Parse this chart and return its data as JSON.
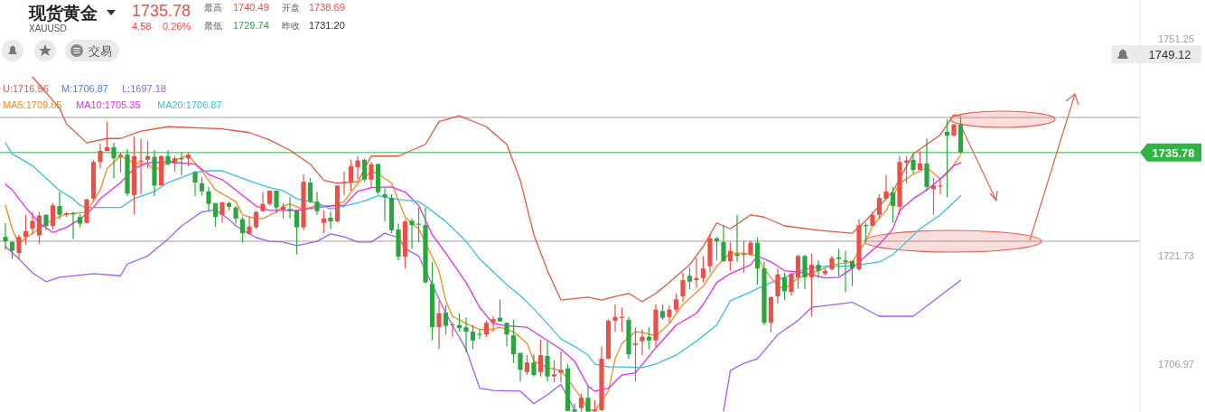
{
  "chart_data": {
    "type": "candlestick",
    "title": "现货黄金",
    "subtitle": "XAUUSD",
    "categories": [
      null,
      null,
      null,
      null,
      null,
      null,
      null,
      null,
      null,
      null,
      null,
      null,
      null,
      null,
      null,
      null,
      null,
      null,
      null,
      null,
      null,
      null,
      null,
      null,
      null,
      null,
      null,
      null,
      null,
      null,
      null,
      null,
      null,
      null,
      null,
      null,
      null,
      null,
      null,
      null,
      null,
      null,
      null,
      null,
      null,
      null,
      null,
      null,
      null,
      null,
      null,
      null,
      null,
      null,
      null,
      null,
      null,
      null,
      null,
      null,
      null,
      null,
      null,
      null,
      null,
      null,
      null,
      null,
      null,
      null,
      null,
      null,
      null,
      null,
      null,
      null,
      null,
      null,
      null,
      null,
      null,
      null,
      null,
      null,
      null,
      null,
      null,
      null,
      null,
      null,
      null,
      null,
      null,
      null,
      null,
      null,
      null,
      null,
      null,
      null,
      null,
      null,
      null,
      null,
      null,
      null,
      null,
      null,
      null,
      null,
      null,
      null,
      null,
      null,
      null,
      null,
      null,
      null,
      null,
      null,
      null,
      null,
      null,
      null,
      null,
      null,
      null,
      null,
      null,
      null,
      null,
      null,
      null,
      null,
      null,
      null,
      null,
      null,
      null,
      null,
      null,
      null
    ],
    "ohlc": [
      [
        1724.3,
        1726.2,
        1722.5,
        1723.7
      ],
      [
        1723.6,
        1723.7,
        1721.3,
        1722.4
      ],
      [
        1722.1,
        1724.6,
        1721.3,
        1724.3
      ],
      [
        1724.3,
        1727.3,
        1723.3,
        1725.1
      ],
      [
        1725.4,
        1727.7,
        1724.6,
        1726.5
      ],
      [
        1724.5,
        1727.7,
        1723.3,
        1727.2
      ],
      [
        1727.3,
        1727.4,
        1725.2,
        1725.8
      ],
      [
        1725.8,
        1728.9,
        1725.4,
        1728.6
      ],
      [
        1728.5,
        1730.4,
        1726.7,
        1727.3
      ],
      [
        1727.3,
        1727.7,
        1727.0,
        1727.5
      ],
      [
        1727.5,
        1727.7,
        1724.0,
        1727.4
      ],
      [
        1727.0,
        1727.4,
        1725.6,
        1726.1
      ],
      [
        1726.2,
        1729.5,
        1726.1,
        1729.4
      ],
      [
        1729.5,
        1734.8,
        1729.2,
        1734.5
      ],
      [
        1734.5,
        1737.0,
        1733.6,
        1736.0
      ],
      [
        1736.0,
        1740.0,
        1736.0,
        1736.5
      ],
      [
        1736.5,
        1737.1,
        1732.3,
        1735.0
      ],
      [
        1735.2,
        1735.8,
        1733.1,
        1735.5
      ],
      [
        1735.5,
        1736.3,
        1729.9,
        1730.2
      ],
      [
        1730.0,
        1738.0,
        1727.4,
        1735.3
      ],
      [
        1734.6,
        1737.7,
        1730.1,
        1734.7
      ],
      [
        1734.8,
        1737.4,
        1733.6,
        1735.3
      ],
      [
        1735.2,
        1736.1,
        1729.9,
        1731.3
      ],
      [
        1731.3,
        1735.4,
        1731.3,
        1735.3
      ],
      [
        1735.3,
        1736.1,
        1734.0,
        1734.2
      ],
      [
        1734.3,
        1735.3,
        1733.2,
        1735.0
      ],
      [
        1735.0,
        1735.8,
        1732.7,
        1734.9
      ],
      [
        1735.0,
        1735.8,
        1733.9,
        1735.5
      ],
      [
        1733.1,
        1733.3,
        1729.9,
        1731.7
      ],
      [
        1731.6,
        1732.4,
        1729.9,
        1730.5
      ],
      [
        1730.5,
        1731.1,
        1727.7,
        1728.8
      ],
      [
        1728.9,
        1728.9,
        1725.7,
        1727.0
      ],
      [
        1727.3,
        1729.1,
        1726.2,
        1729.0
      ],
      [
        1728.9,
        1729.1,
        1727.9,
        1728.4
      ],
      [
        1728.3,
        1728.5,
        1726.1,
        1726.8
      ],
      [
        1726.7,
        1727.0,
        1723.5,
        1724.8
      ],
      [
        1724.7,
        1727.0,
        1724.6,
        1725.7
      ],
      [
        1725.6,
        1727.9,
        1725.4,
        1727.7
      ],
      [
        1727.8,
        1730.4,
        1727.7,
        1728.8
      ],
      [
        1728.8,
        1730.6,
        1728.6,
        1730.6
      ],
      [
        1730.6,
        1730.6,
        1727.5,
        1728.3
      ],
      [
        1728.0,
        1728.9,
        1726.8,
        1728.4
      ],
      [
        1728.1,
        1729.7,
        1726.8,
        1727.8
      ],
      [
        1727.9,
        1727.9,
        1721.9,
        1725.6
      ],
      [
        1725.6,
        1732.8,
        1725.2,
        1731.8
      ],
      [
        1731.7,
        1732.3,
        1728.9,
        1729.1
      ],
      [
        1729.1,
        1730.4,
        1727.3,
        1727.8
      ],
      [
        1726.2,
        1727.9,
        1724.8,
        1726.8
      ],
      [
        1726.9,
        1727.7,
        1725.4,
        1726.4
      ],
      [
        1726.4,
        1731.3,
        1726.3,
        1731.3
      ],
      [
        1731.6,
        1733.2,
        1730.0,
        1731.8
      ],
      [
        1731.7,
        1734.8,
        1730.6,
        1733.9
      ],
      [
        1733.8,
        1735.3,
        1732.2,
        1734.7
      ],
      [
        1734.8,
        1735.0,
        1731.8,
        1732.1
      ],
      [
        1732.1,
        1734.5,
        1731.1,
        1734.2
      ],
      [
        1734.2,
        1734.3,
        1730.1,
        1730.4
      ],
      [
        1730.1,
        1731.0,
        1726.4,
        1729.7
      ],
      [
        1729.6,
        1730.1,
        1724.8,
        1725.2
      ],
      [
        1725.3,
        1726.1,
        1721.1,
        1721.6
      ],
      [
        1721.6,
        1726.7,
        1720.0,
        1726.4
      ],
      [
        1726.5,
        1726.8,
        1722.7,
        1725.9
      ],
      [
        1726.1,
        1728.3,
        1723.6,
        1726.0
      ],
      [
        1725.9,
        1728.3,
        1718.0,
        1718.1
      ],
      [
        1717.9,
        1720.9,
        1710.2,
        1712.0
      ],
      [
        1712.0,
        1715.6,
        1709.0,
        1713.9
      ],
      [
        1714.0,
        1715.0,
        1711.0,
        1712.2
      ],
      [
        1712.3,
        1712.6,
        1710.7,
        1712.4
      ],
      [
        1712.3,
        1713.9,
        1711.4,
        1711.9
      ],
      [
        1712.0,
        1713.3,
        1708.6,
        1711.4
      ],
      [
        1711.4,
        1712.3,
        1709.0,
        1710.2
      ],
      [
        1711.1,
        1711.7,
        1710.4,
        1711.0
      ],
      [
        1711.0,
        1712.9,
        1710.7,
        1712.6
      ],
      [
        1712.6,
        1713.5,
        1711.4,
        1713.1
      ],
      [
        1713.3,
        1715.8,
        1712.8,
        1712.8
      ],
      [
        1712.6,
        1712.6,
        1709.4,
        1711.0
      ],
      [
        1710.9,
        1713.0,
        1707.1,
        1708.3
      ],
      [
        1708.5,
        1708.5,
        1704.6,
        1706.2
      ],
      [
        1705.9,
        1708.2,
        1705.5,
        1707.2
      ],
      [
        1707.2,
        1708.3,
        1705.3,
        1705.5
      ],
      [
        1705.9,
        1710.3,
        1705.3,
        1708.2
      ],
      [
        1708.1,
        1710.1,
        1704.6,
        1705.3
      ],
      [
        1705.3,
        1707.5,
        1704.5,
        1705.6
      ],
      [
        1705.8,
        1708.7,
        1704.5,
        1706.2
      ],
      [
        1706.4,
        1707.0,
        1700.6,
        1700.6
      ],
      [
        1700.8,
        1701.6,
        1700.5,
        1700.5
      ],
      [
        1701.0,
        1703.0,
        1700.5,
        1702.4
      ],
      [
        1702.4,
        1704.1,
        1700.5,
        1700.5
      ],
      [
        1700.6,
        1702.1,
        1700.5,
        1700.8
      ],
      [
        1700.7,
        1709.4,
        1700.6,
        1707.7
      ],
      [
        1707.7,
        1713.1,
        1707.7,
        1712.9
      ],
      [
        1712.9,
        1715.1,
        1711.4,
        1713.4
      ],
      [
        1713.3,
        1714.7,
        1711.4,
        1713.4
      ],
      [
        1713.0,
        1713.4,
        1707.7,
        1708.3
      ],
      [
        1709.6,
        1712.0,
        1704.6,
        1709.8
      ],
      [
        1710.1,
        1711.7,
        1708.2,
        1710.7
      ],
      [
        1710.7,
        1712.0,
        1709.0,
        1710.2
      ],
      [
        1710.2,
        1715.1,
        1709.2,
        1714.4
      ],
      [
        1714.2,
        1715.1,
        1713.0,
        1713.3
      ],
      [
        1713.4,
        1715.0,
        1712.6,
        1714.4
      ],
      [
        1714.4,
        1716.6,
        1714.1,
        1715.8
      ],
      [
        1716.2,
        1719.4,
        1715.4,
        1718.4
      ],
      [
        1719.0,
        1720.1,
        1717.2,
        1718.2
      ],
      [
        1718.4,
        1721.4,
        1717.4,
        1718.7
      ],
      [
        1718.7,
        1721.7,
        1718.1,
        1720.0
      ],
      [
        1720.3,
        1724.6,
        1719.4,
        1724.1
      ],
      [
        1724.1,
        1724.3,
        1721.1,
        1723.7
      ],
      [
        1723.6,
        1725.9,
        1720.9,
        1721.0
      ],
      [
        1721.0,
        1723.6,
        1719.7,
        1722.4
      ],
      [
        1722.0,
        1727.3,
        1720.9,
        1721.7
      ],
      [
        1721.9,
        1723.8,
        1719.4,
        1722.0
      ],
      [
        1721.9,
        1723.8,
        1721.7,
        1723.5
      ],
      [
        1723.5,
        1724.2,
        1717.8,
        1720.0
      ],
      [
        1720.0,
        1720.9,
        1712.3,
        1712.6
      ],
      [
        1712.6,
        1716.2,
        1711.3,
        1716.1
      ],
      [
        1716.2,
        1720.0,
        1715.2,
        1719.2
      ],
      [
        1718.8,
        1719.4,
        1715.7,
        1716.9
      ],
      [
        1716.8,
        1719.4,
        1716.3,
        1719.3
      ],
      [
        1718.8,
        1721.9,
        1717.3,
        1721.7
      ],
      [
        1721.7,
        1721.9,
        1717.2,
        1718.8
      ],
      [
        1718.8,
        1722.0,
        1713.5,
        1720.5
      ],
      [
        1720.5,
        1721.1,
        1718.7,
        1719.7
      ],
      [
        1719.3,
        1720.0,
        1719.0,
        1719.7
      ],
      [
        1719.9,
        1721.7,
        1719.7,
        1721.4
      ],
      [
        1721.5,
        1722.7,
        1719.0,
        1721.3
      ],
      [
        1721.1,
        1722.4,
        1716.8,
        1720.9
      ],
      [
        1721.0,
        1721.1,
        1717.6,
        1720.0
      ],
      [
        1719.9,
        1726.7,
        1719.7,
        1725.9
      ],
      [
        1725.9,
        1726.2,
        1723.7,
        1725.8
      ],
      [
        1725.8,
        1727.7,
        1725.8,
        1727.3
      ],
      [
        1727.3,
        1730.1,
        1726.7,
        1729.6
      ],
      [
        1729.5,
        1732.7,
        1729.5,
        1730.5
      ],
      [
        1730.3,
        1731.1,
        1726.2,
        1728.5
      ],
      [
        1728.4,
        1735.3,
        1727.4,
        1734.5
      ],
      [
        1734.4,
        1735.3,
        1731.6,
        1734.7
      ],
      [
        1734.8,
        1735.6,
        1732.9,
        1733.4
      ],
      [
        1733.4,
        1736.0,
        1733.4,
        1734.3
      ],
      [
        1734.3,
        1737.7,
        1730.5,
        1731.1
      ],
      [
        1730.8,
        1732.3,
        1727.3,
        1731.3
      ],
      [
        1731.2,
        1732.1,
        1730.1,
        1731.3
      ],
      [
        1738.6,
        1740.3,
        1729.7,
        1738.1
      ],
      [
        1738.1,
        1739.7,
        1737.9,
        1739.6
      ],
      [
        1739.6,
        1740.5,
        1735.6,
        1735.8
      ]
    ],
    "series": [
      {
        "name": "U:1716.56",
        "type": "line",
        "color": "#e4573f",
        "values": [
          null,
          null,
          null,
          null,
          1746.1,
          null,
          null,
          null,
          1741.8,
          1739.7,
          null,
          null,
          1737.1,
          null,
          null,
          1737.7,
          null,
          1737.7,
          null,
          null,
          1738.7,
          null,
          null,
          null,
          1739.3,
          null,
          null,
          null,
          null,
          null,
          null,
          null,
          1739.0,
          null,
          null,
          null,
          1738.5,
          null,
          null,
          1737.5,
          null,
          null,
          1736.1,
          null,
          null,
          1734.2,
          null,
          1732.0,
          null,
          1731.6,
          null,
          null,
          1731.8,
          null,
          1735.3,
          null,
          null,
          null,
          1735.3,
          null,
          null,
          null,
          1736.9,
          null,
          1740.0,
          null,
          null,
          1740.8,
          null,
          null,
          null,
          1739.3,
          null,
          null,
          1736.9,
          null,
          1732.0,
          null,
          1724.6,
          null,
          1719.7,
          null,
          1715.7,
          null,
          null,
          null,
          1716.1,
          null,
          1715.7,
          null,
          1716.2,
          null,
          1716.6,
          null,
          1715.5,
          null,
          1716.6,
          null,
          1718.1,
          null,
          null,
          1720.5,
          null,
          1723.0,
          null,
          1726.2,
          null,
          1725.4,
          null,
          null,
          1727.3,
          null,
          1727.0,
          null,
          null,
          1725.8,
          null,
          null,
          null,
          null,
          1725.2,
          null,
          null,
          null,
          null,
          1724.8,
          null,
          1726.5,
          null,
          null,
          null,
          1730.5,
          null,
          null,
          1735.6,
          null,
          null,
          null,
          1738.2,
          null,
          1740.9,
          1740.8
        ]
      },
      {
        "name": "L:1697.18",
        "type": "line",
        "color": "#a25cf2",
        "values": [
          1723.0,
          null,
          1721.3,
          null,
          1719.4,
          null,
          1718.2,
          null,
          1718.8,
          null,
          null,
          null,
          null,
          1719.3,
          null,
          null,
          null,
          1719.0,
          1720.6,
          null,
          null,
          1721.7,
          null,
          null,
          1724.0,
          null,
          1725.8,
          null,
          null,
          1727.7,
          null,
          1728.0,
          null,
          1726.7,
          1725.8,
          null,
          null,
          1724.2,
          null,
          1723.7,
          null,
          1723.6,
          null,
          1723.1,
          null,
          null,
          1723.7,
          null,
          1724.7,
          null,
          1724.3,
          null,
          1723.6,
          null,
          1723.6,
          null,
          1724.8,
          null,
          1724.2,
          1722.7,
          null,
          1721.7,
          null,
          null,
          null,
          1713.9,
          null,
          null,
          1709.0,
          null,
          1703.7,
          null,
          1703.4,
          null,
          null,
          null,
          1703.3,
          null,
          1701.6,
          null,
          1702.8,
          null,
          1704.2,
          null,
          1700.8,
          null,
          null,
          null,
          null,
          null,
          null,
          null,
          null,
          null,
          null,
          null,
          null,
          null,
          null,
          null,
          null,
          null,
          null,
          null,
          null,
          null,
          1700.6,
          1706.1,
          null,
          1707.1,
          null,
          1707.7,
          null,
          null,
          1711.0,
          null,
          null,
          1712.9,
          null,
          1714.7,
          null,
          null,
          null,
          null,
          null,
          1715.4,
          null,
          null,
          null,
          1713.5,
          null,
          null,
          null,
          null,
          1713.5,
          null,
          null,
          null,
          1716.3,
          null,
          null,
          1718.4
        ]
      },
      {
        "name": "MA5:1709.65",
        "type": "line",
        "color": "#f58a1f",
        "values": [
          1728.6,
          1725.4,
          1723.3,
          1724.2,
          null,
          1725.4,
          null,
          1726.7,
          null,
          1727.4,
          null,
          null,
          1727.7,
          null,
          1730.7,
          1733.6,
          null,
          1735.3,
          null,
          1734.4,
          null,
          1734.2,
          1733.4,
          null,
          1734.4,
          null,
          null,
          1735.4,
          null,
          1733.3,
          null,
          1730.7,
          null,
          null,
          1729.1,
          1727.3,
          null,
          1726.8,
          1726.8,
          null,
          1727.7,
          1728.5,
          1728.8,
          null,
          1728.0,
          null,
          1728.6,
          null,
          1728.5,
          null,
          1729.1,
          null,
          1731.6,
          null,
          1733.2,
          1732.9,
          null,
          1731.6,
          null,
          1727.0,
          null,
          1725.4,
          null,
          null,
          1719.7,
          1715.6,
          1713.5,
          null,
          1712.5,
          null,
          1711.7,
          null,
          1711.7,
          1712.0,
          null,
          1711.4,
          null,
          1709.8,
          1707.4,
          null,
          1706.5,
          null,
          1706.1,
          1704.9,
          null,
          1702.4,
          1700.8,
          1700.6,
          null,
          1703.3,
          1707.7,
          1709.8,
          null,
          1711.4,
          1711.3,
          null,
          1710.8,
          null,
          1712.5,
          null,
          1715.1,
          null,
          null,
          1717.6,
          null,
          1720.3,
          null,
          1722.1,
          null,
          1722.1,
          null,
          1721.7,
          1719.9,
          null,
          1717.6,
          1717.2,
          null,
          1718.7,
          null,
          1719.3,
          null,
          null,
          1720.5,
          null,
          null,
          1720.9,
          null,
          1723.7,
          1725.8,
          null,
          1727.9,
          null,
          1731.6,
          null,
          1732.8,
          null,
          1733.7,
          null,
          1732.2,
          1732.9,
          null,
          1735.4
        ]
      },
      {
        "name": "MA10:1705.35",
        "type": "line",
        "color": "#ee2ae6",
        "values": [
          1731.5,
          1730.7,
          null,
          1728.3,
          null,
          1726.2,
          null,
          1724.9,
          null,
          1725.6,
          null,
          1726.7,
          null,
          1728.3,
          1729.5,
          null,
          null,
          1731.7,
          null,
          1733.6,
          null,
          1734.4,
          null,
          null,
          1734.5,
          null,
          null,
          null,
          1734.2,
          null,
          1732.8,
          null,
          1732.1,
          null,
          1730.7,
          null,
          null,
          1728.5,
          null,
          1727.9,
          null,
          null,
          null,
          1727.9,
          null,
          null,
          1728.3,
          null,
          1728.5,
          null,
          1728.6,
          null,
          1730.5,
          null,
          1731.0,
          null,
          null,
          1731.1,
          null,
          1730.4,
          null,
          1728.6,
          null,
          1724.6,
          null,
          1722.1,
          null,
          null,
          1718.1,
          null,
          1714.7,
          null,
          1712.5,
          null,
          1712.2,
          null,
          null,
          1712.0,
          null,
          1710.8,
          null,
          null,
          1709.0,
          null,
          1707.4,
          null,
          1704.0,
          1703.3,
          null,
          1703.7,
          null,
          1705.5,
          null,
          1705.8,
          null,
          null,
          1709.2,
          null,
          null,
          1712.3,
          null,
          null,
          1713.9,
          1715.1,
          null,
          1718.1,
          null,
          1719.3,
          null,
          null,
          1720.5,
          1721.7,
          null,
          1720.9,
          null,
          1719.7,
          null,
          null,
          1719.4,
          null,
          null,
          1718.7,
          null,
          1718.8,
          null,
          1720.0,
          null,
          1721.7,
          null,
          1723.3,
          null,
          1725.4,
          1727.9,
          null,
          1729.5,
          null,
          1730.7,
          null,
          1732.2,
          null,
          1734.0,
          1734.4
        ]
      },
      {
        "name": "MA20:1706.87",
        "type": "line",
        "color": "#37c0e6",
        "values": [
          1737.1,
          1735.6,
          null,
          null,
          1734.0,
          null,
          1732.3,
          null,
          1730.6,
          null,
          1729.5,
          1728.6,
          1728.3,
          null,
          null,
          null,
          null,
          1728.3,
          null,
          1729.5,
          null,
          null,
          1730.5,
          null,
          1731.7,
          null,
          null,
          null,
          1733.1,
          null,
          1733.3,
          null,
          1733.3,
          null,
          1732.6,
          null,
          null,
          1731.6,
          null,
          1731.0,
          null,
          1730.6,
          null,
          1729.5,
          null,
          null,
          1728.9,
          null,
          1728.1,
          null,
          1728.5,
          null,
          null,
          1729.2,
          null,
          1729.9,
          null,
          null,
          1729.4,
          null,
          null,
          1729.1,
          1728.5,
          null,
          null,
          1726.4,
          null,
          null,
          1723.7,
          null,
          1721.3,
          null,
          null,
          null,
          1717.8,
          null,
          1716.3,
          null,
          1714.5,
          null,
          1712.5,
          null,
          1710.4,
          null,
          1709.4,
          null,
          1708.2,
          1707.0,
          null,
          1706.6,
          null,
          1706.6,
          null,
          null,
          1706.5,
          null,
          1707.0,
          null,
          null,
          1708.2,
          null,
          null,
          1710.1,
          null,
          null,
          1712.3,
          null,
          1715.6,
          null,
          null,
          1716.8,
          null,
          1717.7,
          null,
          null,
          1718.8,
          null,
          null,
          1719.9,
          null,
          null,
          1720.3,
          null,
          null,
          1720.3,
          null,
          1720.5,
          null,
          null,
          1720.9,
          null,
          1721.9,
          null,
          1723.6,
          null,
          1725.4,
          null,
          null,
          1727.3,
          null,
          null,
          1729.9
        ]
      }
    ],
    "ylim": [
      1700.46,
      1756.55
    ],
    "yticks": [
      1751.25,
      1721.73,
      1706.97
    ],
    "tick_labels": "y",
    "ref_lines": [
      {
        "axis": "y",
        "value": 1740.56,
        "color": "#a0a0a0"
      },
      {
        "axis": "y",
        "value": 1723.71,
        "color": "#a0a0a0"
      },
      {
        "axis": "y",
        "value": 1735.78,
        "label": "1735.78",
        "color": "#2fb344"
      }
    ],
    "annotations": [
      "1735.78",
      "4.58",
      "0.26%",
      "最高",
      "1740.49",
      "开盘",
      "1738.69",
      "最低",
      "1729.74",
      "昨收",
      "1731.20",
      "交易",
      "1749.12",
      "M:1706.87"
    ]
  }
}
